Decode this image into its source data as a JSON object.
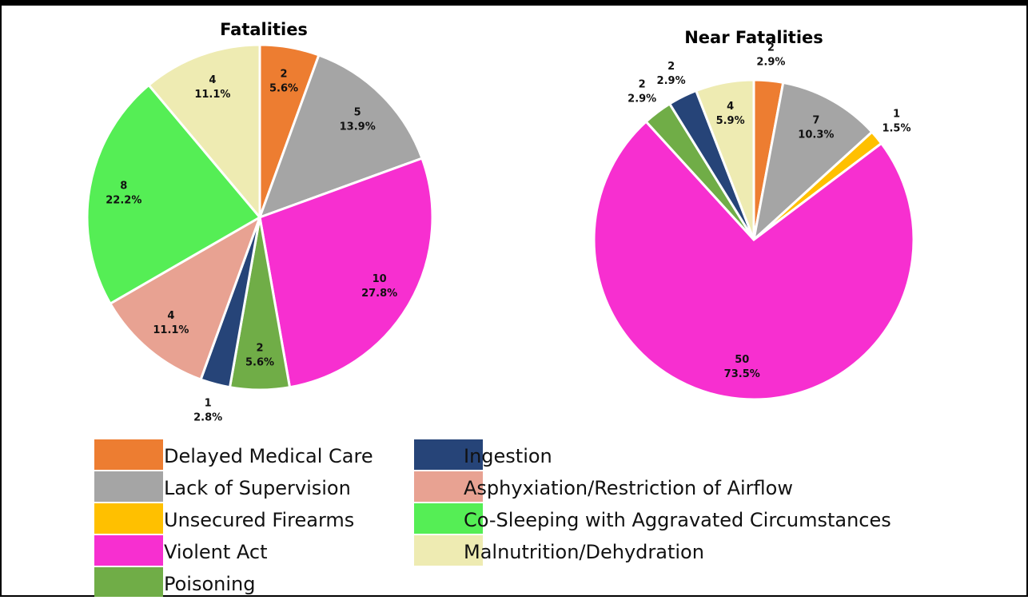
{
  "legend": [
    {
      "name": "Delayed Medical Care",
      "color": "#ED7D31"
    },
    {
      "name": "Lack of Supervision",
      "color": "#A5A5A5"
    },
    {
      "name": "Unsecured Firearms",
      "color": "#FFC000"
    },
    {
      "name": "Violent Act",
      "color": "#F72FD0"
    },
    {
      "name": "Poisoning",
      "color": "#70AD47"
    },
    {
      "name": "Ingestion",
      "color": "#264478"
    },
    {
      "name": "Asphyxiation/Restriction of Airflow",
      "color": "#E8A292"
    },
    {
      "name": "Co-Sleeping with Aggravated Circumstances",
      "color": "#55EE55"
    },
    {
      "name": "Malnutrition/Dehydration",
      "color": "#EEEBB2"
    }
  ],
  "chart_data": [
    {
      "type": "pie",
      "title": "Fatalities",
      "categories": [
        "Delayed Medical Care",
        "Lack of Supervision",
        "Violent Act",
        "Poisoning",
        "Ingestion",
        "Asphyxiation/Restriction of Airflow",
        "Co-Sleeping with Aggravated Circumstances",
        "Malnutrition/Dehydration"
      ],
      "values": [
        2,
        5,
        10,
        2,
        1,
        4,
        8,
        4
      ],
      "percent_labels": [
        "5.6%",
        "13.9%",
        "27.8%",
        "5.6%",
        "2.8%",
        "11.1%",
        "22.2%",
        "11.1%"
      ]
    },
    {
      "type": "pie",
      "title": "Near Fatalities",
      "categories": [
        "Delayed Medical Care",
        "Lack of Supervision",
        "Unsecured Firearms",
        "Violent Act",
        "Poisoning",
        "Ingestion",
        "Malnutrition/Dehydration"
      ],
      "values": [
        2,
        7,
        1,
        50,
        2,
        2,
        4
      ],
      "percent_labels": [
        "2.9%",
        "10.3%",
        "1.5%",
        "73.5%",
        "2.9%",
        "2.9%",
        "5.9%"
      ]
    }
  ]
}
